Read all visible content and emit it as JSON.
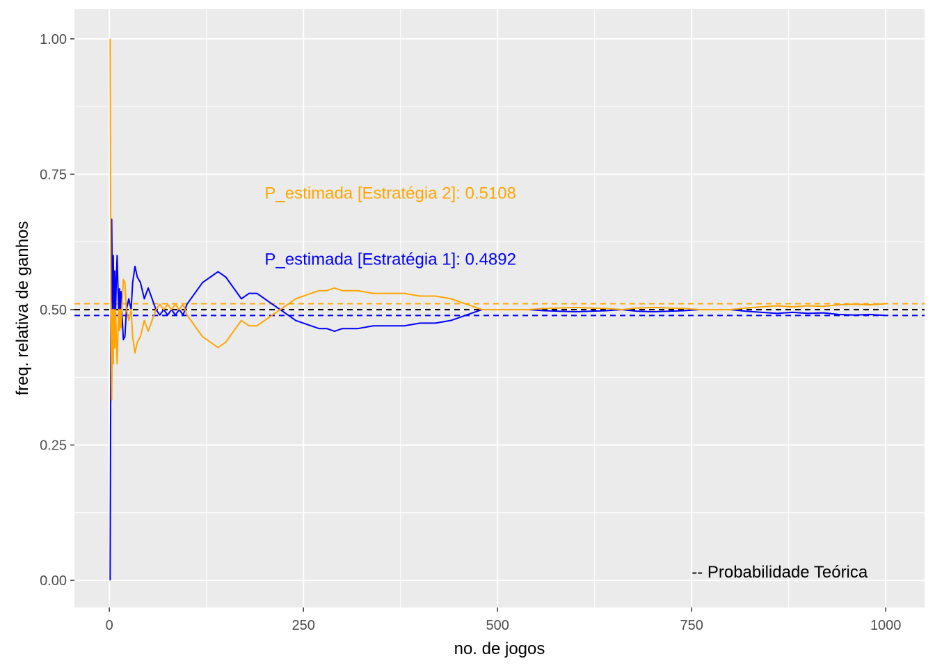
{
  "chart_data": {
    "type": "line",
    "xlabel": "no. de jogos",
    "ylabel": "freq. relativa de ganhos",
    "xlim": [
      -45,
      1050
    ],
    "ylim": [
      -0.05,
      1.055
    ],
    "x_ticks": [
      0,
      250,
      500,
      750,
      1000
    ],
    "x_tick_labels": [
      "0",
      "250",
      "500",
      "750",
      "1000"
    ],
    "y_ticks": [
      0,
      0.25,
      0.5,
      0.75,
      1.0
    ],
    "y_tick_labels": [
      "0.00",
      "0.25",
      "0.50",
      "0.75",
      "1.00"
    ],
    "grid": true,
    "background": "#ebebeb",
    "series": [
      {
        "key": "estrategia1",
        "color": "#0000ff",
        "points": [
          [
            1,
            0
          ],
          [
            2,
            0.5
          ],
          [
            3,
            0.6667
          ],
          [
            4,
            0.5
          ],
          [
            5,
            0.6
          ],
          [
            6,
            0.5
          ],
          [
            7,
            0.5714
          ],
          [
            8,
            0.5
          ],
          [
            9,
            0.5556
          ],
          [
            10,
            0.6
          ],
          [
            11,
            0.5455
          ],
          [
            12,
            0.5
          ],
          [
            13,
            0.5385
          ],
          [
            14,
            0.5
          ],
          [
            15,
            0.5333
          ],
          [
            16,
            0.5
          ],
          [
            18,
            0.4444
          ],
          [
            20,
            0.45
          ],
          [
            22,
            0.5
          ],
          [
            25,
            0.52
          ],
          [
            28,
            0.5
          ],
          [
            30,
            0.55
          ],
          [
            33,
            0.58
          ],
          [
            36,
            0.56
          ],
          [
            40,
            0.55
          ],
          [
            45,
            0.52
          ],
          [
            50,
            0.54
          ],
          [
            55,
            0.52
          ],
          [
            60,
            0.5
          ],
          [
            65,
            0.49
          ],
          [
            70,
            0.5
          ],
          [
            75,
            0.49
          ],
          [
            80,
            0.5
          ],
          [
            85,
            0.49
          ],
          [
            90,
            0.5
          ],
          [
            95,
            0.49
          ],
          [
            100,
            0.51
          ],
          [
            110,
            0.53
          ],
          [
            120,
            0.55
          ],
          [
            130,
            0.56
          ],
          [
            140,
            0.57
          ],
          [
            150,
            0.56
          ],
          [
            160,
            0.54
          ],
          [
            170,
            0.52
          ],
          [
            180,
            0.53
          ],
          [
            190,
            0.53
          ],
          [
            200,
            0.52
          ],
          [
            210,
            0.51
          ],
          [
            220,
            0.5
          ],
          [
            230,
            0.49
          ],
          [
            240,
            0.48
          ],
          [
            250,
            0.475
          ],
          [
            260,
            0.47
          ],
          [
            270,
            0.465
          ],
          [
            280,
            0.465
          ],
          [
            290,
            0.46
          ],
          [
            300,
            0.465
          ],
          [
            320,
            0.465
          ],
          [
            340,
            0.47
          ],
          [
            360,
            0.47
          ],
          [
            380,
            0.47
          ],
          [
            400,
            0.475
          ],
          [
            420,
            0.475
          ],
          [
            440,
            0.48
          ],
          [
            460,
            0.49
          ],
          [
            480,
            0.5
          ],
          [
            500,
            0.5
          ],
          [
            520,
            0.5
          ],
          [
            540,
            0.5
          ],
          [
            560,
            0.498
          ],
          [
            580,
            0.497
          ],
          [
            600,
            0.496
          ],
          [
            620,
            0.497
          ],
          [
            640,
            0.498
          ],
          [
            660,
            0.5
          ],
          [
            680,
            0.497
          ],
          [
            700,
            0.496
          ],
          [
            720,
            0.497
          ],
          [
            740,
            0.498
          ],
          [
            760,
            0.5
          ],
          [
            780,
            0.5
          ],
          [
            800,
            0.5
          ],
          [
            820,
            0.497
          ],
          [
            840,
            0.495
          ],
          [
            860,
            0.493
          ],
          [
            880,
            0.495
          ],
          [
            900,
            0.493
          ],
          [
            920,
            0.494
          ],
          [
            940,
            0.491
          ],
          [
            960,
            0.49
          ],
          [
            980,
            0.491
          ],
          [
            1000,
            0.4892
          ]
        ]
      },
      {
        "key": "estrategia2",
        "color": "#ffa500",
        "points": [
          [
            1,
            1.0
          ],
          [
            2,
            0.5
          ],
          [
            3,
            0.3333
          ],
          [
            4,
            0.5
          ],
          [
            5,
            0.4
          ],
          [
            6,
            0.5
          ],
          [
            7,
            0.4286
          ],
          [
            8,
            0.5
          ],
          [
            9,
            0.4444
          ],
          [
            10,
            0.4
          ],
          [
            11,
            0.4545
          ],
          [
            12,
            0.5
          ],
          [
            13,
            0.4615
          ],
          [
            14,
            0.5
          ],
          [
            15,
            0.4667
          ],
          [
            16,
            0.5
          ],
          [
            18,
            0.5556
          ],
          [
            20,
            0.55
          ],
          [
            22,
            0.5
          ],
          [
            25,
            0.48
          ],
          [
            28,
            0.5
          ],
          [
            30,
            0.45
          ],
          [
            33,
            0.42
          ],
          [
            36,
            0.44
          ],
          [
            40,
            0.45
          ],
          [
            45,
            0.48
          ],
          [
            50,
            0.46
          ],
          [
            55,
            0.48
          ],
          [
            60,
            0.5
          ],
          [
            65,
            0.51
          ],
          [
            70,
            0.5
          ],
          [
            75,
            0.51
          ],
          [
            80,
            0.5
          ],
          [
            85,
            0.51
          ],
          [
            90,
            0.5
          ],
          [
            95,
            0.51
          ],
          [
            100,
            0.49
          ],
          [
            110,
            0.47
          ],
          [
            120,
            0.45
          ],
          [
            130,
            0.44
          ],
          [
            140,
            0.43
          ],
          [
            150,
            0.44
          ],
          [
            160,
            0.46
          ],
          [
            170,
            0.48
          ],
          [
            180,
            0.47
          ],
          [
            190,
            0.47
          ],
          [
            200,
            0.48
          ],
          [
            210,
            0.49
          ],
          [
            220,
            0.5
          ],
          [
            230,
            0.51
          ],
          [
            240,
            0.52
          ],
          [
            250,
            0.525
          ],
          [
            260,
            0.53
          ],
          [
            270,
            0.535
          ],
          [
            280,
            0.535
          ],
          [
            290,
            0.54
          ],
          [
            300,
            0.535
          ],
          [
            320,
            0.535
          ],
          [
            340,
            0.53
          ],
          [
            360,
            0.53
          ],
          [
            380,
            0.53
          ],
          [
            400,
            0.525
          ],
          [
            420,
            0.525
          ],
          [
            440,
            0.52
          ],
          [
            460,
            0.51
          ],
          [
            480,
            0.5
          ],
          [
            500,
            0.5
          ],
          [
            520,
            0.5
          ],
          [
            540,
            0.5
          ],
          [
            560,
            0.502
          ],
          [
            580,
            0.503
          ],
          [
            600,
            0.504
          ],
          [
            620,
            0.503
          ],
          [
            640,
            0.502
          ],
          [
            660,
            0.5
          ],
          [
            680,
            0.503
          ],
          [
            700,
            0.504
          ],
          [
            720,
            0.503
          ],
          [
            740,
            0.502
          ],
          [
            760,
            0.5
          ],
          [
            780,
            0.5
          ],
          [
            800,
            0.5
          ],
          [
            820,
            0.503
          ],
          [
            840,
            0.505
          ],
          [
            860,
            0.507
          ],
          [
            880,
            0.505
          ],
          [
            900,
            0.507
          ],
          [
            920,
            0.506
          ],
          [
            940,
            0.509
          ],
          [
            960,
            0.51
          ],
          [
            980,
            0.509
          ],
          [
            1000,
            0.5108
          ]
        ]
      }
    ],
    "hlines": [
      {
        "y": 0.5108,
        "color": "#ffa500",
        "dashed": true
      },
      {
        "y": 0.5,
        "color": "#000000",
        "dashed": true
      },
      {
        "y": 0.4892,
        "color": "#0000ff",
        "dashed": true
      }
    ],
    "annotations": [
      {
        "key": "p2",
        "text": "P_estimada [Estratégia 2]: 0.5108",
        "x": 200,
        "y": 0.705,
        "color": "#ffa500"
      },
      {
        "key": "p1",
        "text": "P_estimada [Estratégia 1]: 0.4892",
        "x": 200,
        "y": 0.583,
        "color": "#0000ff"
      },
      {
        "key": "teorica",
        "text": "-- Probabilidade Teórica",
        "x": 750,
        "y": 0.005,
        "color": "#000000"
      }
    ]
  }
}
